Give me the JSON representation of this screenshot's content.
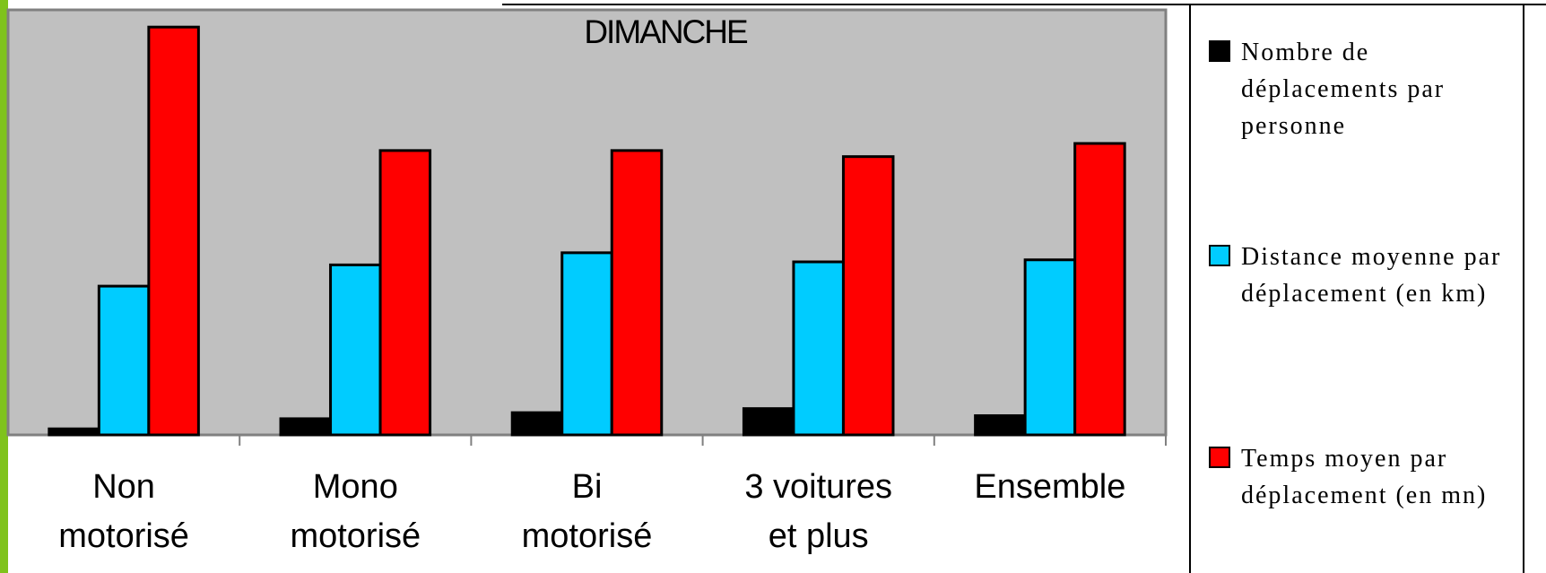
{
  "chart_data": {
    "type": "bar",
    "title": "DIMANCHE",
    "categories": [
      "Non motorisé",
      "Mono motorisé",
      "Bi motorisé",
      "3 voitures et plus",
      "Ensemble"
    ],
    "series": [
      {
        "name": "Nombre de déplacements par personne",
        "color": "#000000",
        "values": [
          0.6,
          1.6,
          2.2,
          2.6,
          1.9
        ]
      },
      {
        "name": "Distance moyenne par déplacement (en km)",
        "color": "#00ccff",
        "values": [
          14.7,
          16.8,
          18,
          17.1,
          17.3
        ]
      },
      {
        "name": "Temps moyen par déplacement (en mn)",
        "color": "#ff0000",
        "values": [
          40.3,
          28.1,
          28.1,
          27.5,
          28.8
        ]
      }
    ],
    "ylim": [
      0,
      42
    ],
    "legend": "right"
  }
}
